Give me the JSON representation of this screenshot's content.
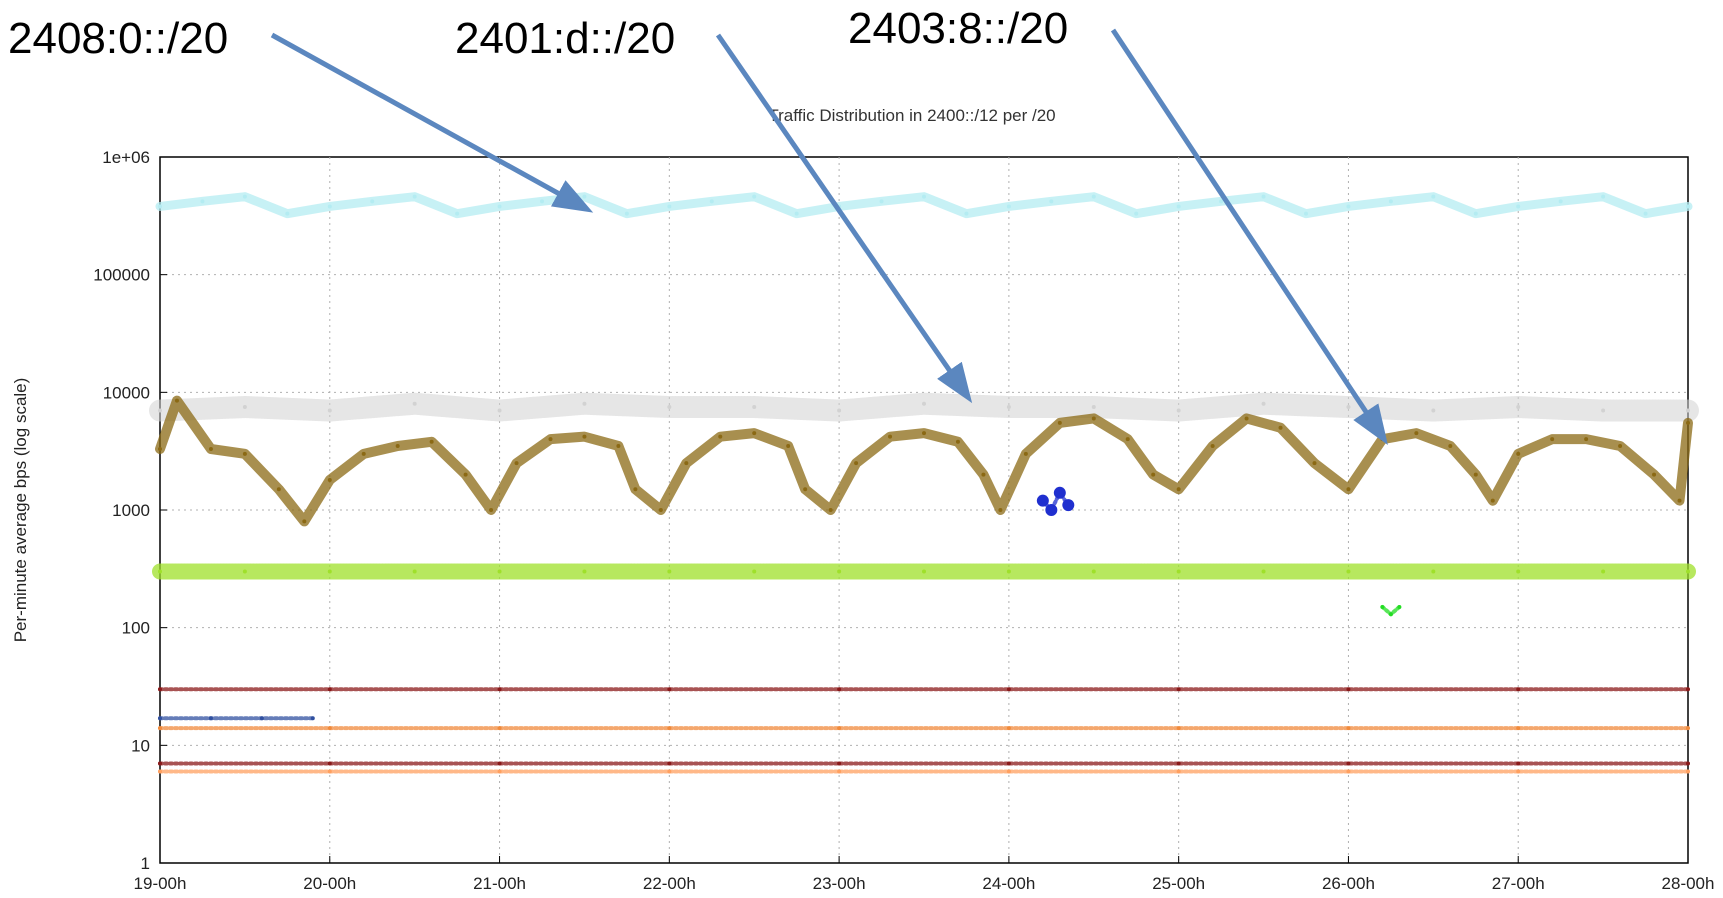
{
  "callouts": [
    {
      "label": "2408:0::/20",
      "points_to_series": "2408:0::/20"
    },
    {
      "label": "2401:d::/20",
      "points_to_series": "2401:d::/20"
    },
    {
      "label": "2403:8::/20",
      "points_to_series": "2403:8::/20"
    }
  ],
  "colors": {
    "arrow": "#5b87bf",
    "grid": "#b0b0b0"
  },
  "chart_data": {
    "type": "scatter",
    "title": "Traffic Distribution in 2400::/12 per /20",
    "xlabel": "",
    "ylabel": "Per-minute average bps (log scale)",
    "y_scale": "log",
    "ylim": [
      1,
      1000000
    ],
    "y_ticks": [
      "1",
      "10",
      "100",
      "1000",
      "10000",
      "100000",
      "1e+06"
    ],
    "x_tick_labels": [
      "19-00h",
      "20-00h",
      "21-00h",
      "22-00h",
      "23-00h",
      "24-00h",
      "25-00h",
      "26-00h",
      "27-00h",
      "28-00h"
    ],
    "x_unit": "days",
    "xlim": [
      19,
      28
    ],
    "grid": true,
    "series": [
      {
        "name": "2408:0::/20",
        "color": "#b4ecf2",
        "x": [
          19.0,
          19.25,
          19.5,
          19.75,
          20.0,
          20.25,
          20.5,
          20.75,
          21.0,
          21.25,
          21.5,
          21.75,
          22.0,
          22.25,
          22.5,
          22.75,
          23.0,
          23.25,
          23.5,
          23.75,
          24.0,
          24.25,
          24.5,
          24.75,
          25.0,
          25.25,
          25.5,
          25.75,
          26.0,
          26.25,
          26.5,
          26.75,
          27.0,
          27.25,
          27.5,
          27.75,
          28.0
        ],
        "y": [
          380000,
          420000,
          460000,
          330000,
          380000,
          420000,
          460000,
          330000,
          380000,
          420000,
          460000,
          330000,
          380000,
          420000,
          460000,
          330000,
          380000,
          420000,
          460000,
          330000,
          380000,
          420000,
          460000,
          330000,
          380000,
          420000,
          460000,
          330000,
          380000,
          420000,
          460000,
          330000,
          380000,
          420000,
          460000,
          330000,
          380000
        ]
      },
      {
        "name": "2401:d::/20",
        "color": "#d2d2d2",
        "x": [
          19.0,
          19.5,
          20.0,
          20.5,
          21.0,
          21.5,
          22.0,
          22.5,
          23.0,
          23.5,
          24.0,
          24.5,
          25.0,
          25.5,
          26.0,
          26.5,
          27.0,
          27.5,
          28.0
        ],
        "y": [
          7000,
          7500,
          7000,
          8000,
          7000,
          8000,
          7500,
          7500,
          7000,
          8000,
          7500,
          7500,
          7000,
          8000,
          7500,
          7000,
          7500,
          7000,
          7000
        ]
      },
      {
        "name": "2403:8::/20",
        "color": "#8b6914",
        "x": [
          19.0,
          19.1,
          19.3,
          19.5,
          19.7,
          19.85,
          20.0,
          20.2,
          20.4,
          20.6,
          20.8,
          20.95,
          21.1,
          21.3,
          21.5,
          21.7,
          21.8,
          21.95,
          22.1,
          22.3,
          22.5,
          22.7,
          22.8,
          22.95,
          23.1,
          23.3,
          23.5,
          23.7,
          23.85,
          23.95,
          24.1,
          24.3,
          24.5,
          24.7,
          24.85,
          25.0,
          25.2,
          25.4,
          25.6,
          25.8,
          26.0,
          26.2,
          26.4,
          26.6,
          26.75,
          26.85,
          27.0,
          27.2,
          27.4,
          27.6,
          27.8,
          27.95,
          28.0
        ],
        "y": [
          3300,
          8500,
          3300,
          3000,
          1500,
          800,
          1800,
          3000,
          3500,
          3800,
          2000,
          1000,
          2500,
          4000,
          4200,
          3500,
          1500,
          1000,
          2500,
          4200,
          4500,
          3500,
          1500,
          1000,
          2500,
          4200,
          4500,
          3800,
          2000,
          1000,
          3000,
          5500,
          6000,
          4000,
          2000,
          1500,
          3500,
          6000,
          5000,
          2500,
          1500,
          4000,
          4500,
          3500,
          2000,
          1200,
          3000,
          4000,
          4000,
          3500,
          2000,
          1200,
          5500
        ]
      },
      {
        "name": "",
        "color": "#9fe02a",
        "x": [
          19.0,
          19.5,
          20.0,
          20.5,
          21.0,
          21.5,
          22.0,
          22.5,
          23.0,
          23.5,
          24.0,
          24.5,
          25.0,
          25.5,
          26.0,
          26.5,
          27.0,
          27.5,
          28.0
        ],
        "y": [
          300,
          300,
          300,
          300,
          300,
          300,
          300,
          300,
          300,
          300,
          300,
          300,
          300,
          300,
          300,
          300,
          300,
          300,
          300
        ]
      },
      {
        "name": "",
        "color": "#1f2fcf",
        "x": [
          24.2,
          24.25,
          24.3,
          24.35
        ],
        "y": [
          1200,
          1000,
          1400,
          1100
        ]
      },
      {
        "name": "",
        "color": "#22dd22",
        "x": [
          26.2,
          26.25,
          26.3
        ],
        "y": [
          150,
          130,
          150
        ]
      },
      {
        "name": "",
        "color": "#8b1a1a",
        "x": [
          19.0,
          20.0,
          21.0,
          22.0,
          23.0,
          24.0,
          25.0,
          26.0,
          27.0,
          28.0
        ],
        "y": [
          30,
          30,
          30,
          30,
          30,
          30,
          30,
          30,
          30,
          30
        ]
      },
      {
        "name": "",
        "color": "#f08a3c",
        "x": [
          19.0,
          20.0,
          21.0,
          22.0,
          23.0,
          24.0,
          25.0,
          26.0,
          27.0,
          28.0
        ],
        "y": [
          14,
          14,
          14,
          14,
          14,
          14,
          14,
          14,
          14,
          14
        ]
      },
      {
        "name": "",
        "color": "#8b1a1a",
        "x": [
          19.0,
          20.0,
          21.0,
          22.0,
          23.0,
          24.0,
          25.0,
          26.0,
          27.0,
          28.0
        ],
        "y": [
          7,
          7,
          7,
          7,
          7,
          7,
          7,
          7,
          7,
          7
        ]
      },
      {
        "name": "",
        "color": "#3050a0",
        "x": [
          19.0,
          19.3,
          19.6,
          19.9
        ],
        "y": [
          17,
          17,
          17,
          17
        ]
      },
      {
        "name": "",
        "color": "#ffa060",
        "x": [
          19.0,
          20.0,
          21.0,
          22.0,
          23.0,
          24.0,
          25.0,
          26.0,
          27.0,
          28.0
        ],
        "y": [
          6,
          6,
          6,
          6,
          6,
          6,
          6,
          6,
          6,
          6
        ]
      }
    ]
  }
}
